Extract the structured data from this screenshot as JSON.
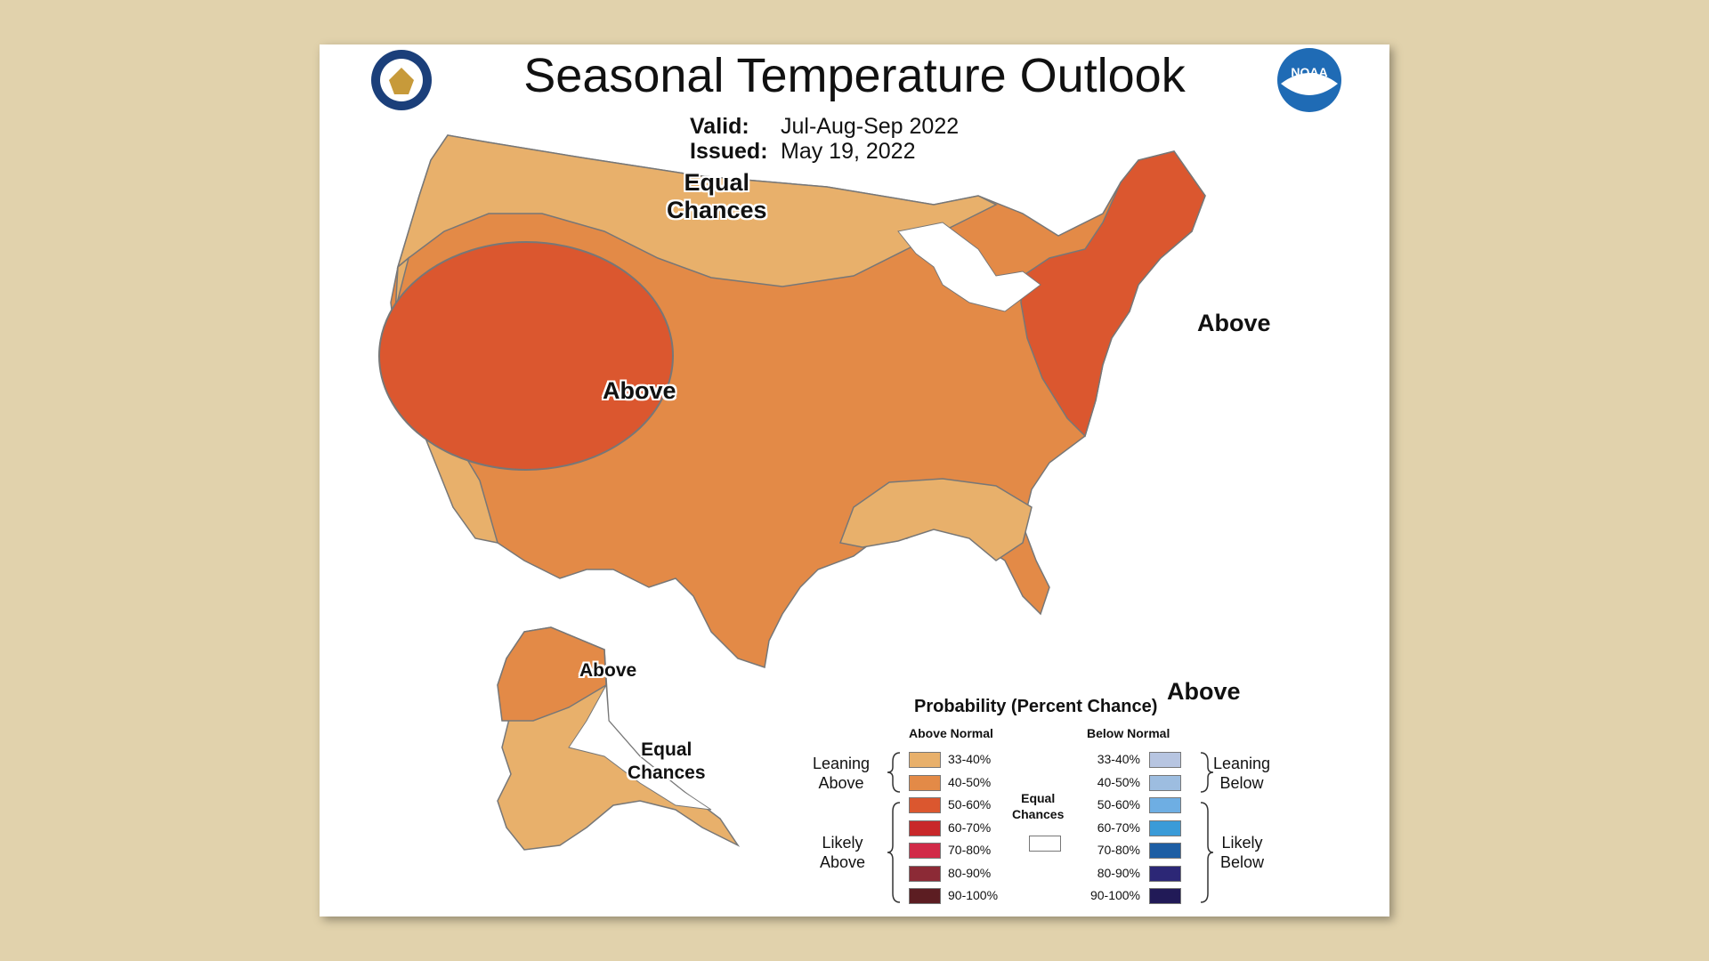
{
  "title": "Seasonal Temperature Outlook",
  "valid_label": "Valid:",
  "valid_value": "Jul-Aug-Sep 2022",
  "issued_label": "Issued:",
  "issued_value": "May 19, 2022",
  "map_labels": {
    "equal_chances_north_line1": "Equal",
    "equal_chances_north_line2": "Chances",
    "above_west": "Above",
    "above_northeast": "Above",
    "above_florida": "Above",
    "above_alaska": "Above",
    "equal_chances_alaska_line1": "Equal",
    "equal_chances_alaska_line2": "Chances"
  },
  "logos": {
    "left": "department-of-commerce-seal",
    "right": "noaa-logo",
    "noaa_text": "NOAA"
  },
  "legend": {
    "title": "Probability (Percent Chance)",
    "above_header": "Above Normal",
    "below_header": "Below Normal",
    "above": [
      {
        "label": "33-40%",
        "color": "#e8b06b"
      },
      {
        "label": "40-50%",
        "color": "#e38a47"
      },
      {
        "label": "50-60%",
        "color": "#db572f"
      },
      {
        "label": "60-70%",
        "color": "#c8282a"
      },
      {
        "label": "70-80%",
        "color": "#d12b48"
      },
      {
        "label": "80-90%",
        "color": "#8c2a36"
      },
      {
        "label": "90-100%",
        "color": "#5c1d22"
      }
    ],
    "below": [
      {
        "label": "33-40%",
        "color": "#b7c5e1"
      },
      {
        "label": "40-50%",
        "color": "#9dbde0"
      },
      {
        "label": "50-60%",
        "color": "#6eaee3"
      },
      {
        "label": "60-70%",
        "color": "#3a9bd8"
      },
      {
        "label": "70-80%",
        "color": "#1d5ea4"
      },
      {
        "label": "80-90%",
        "color": "#2c2776"
      },
      {
        "label": "90-100%",
        "color": "#211a57"
      }
    ],
    "leaning_above": [
      "Leaning",
      "Above"
    ],
    "likely_above": [
      "Likely",
      "Above"
    ],
    "leaning_below": [
      "Leaning",
      "Below"
    ],
    "likely_below": [
      "Likely",
      "Below"
    ],
    "equal_chances": [
      "Equal",
      "Chances"
    ]
  },
  "colors": {
    "lean_above": "#e8b06b",
    "mid_above": "#e38a47",
    "likely_above": "#db572f",
    "boundary": "#777777",
    "background": "#e1d2ac"
  }
}
